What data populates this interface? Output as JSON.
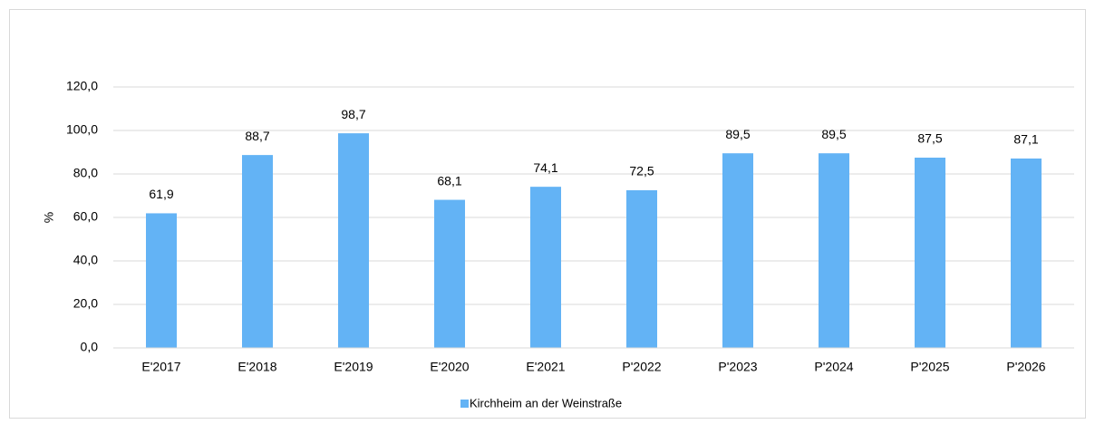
{
  "chart_data": {
    "type": "bar",
    "y_label": "%",
    "categories": [
      "E'2017",
      "E'2018",
      "E'2019",
      "E'2020",
      "E'2021",
      "P'2022",
      "P'2023",
      "P'2024",
      "P'2025",
      "P'2026"
    ],
    "series": [
      {
        "name": "Kirchheim an der Weinstraße",
        "color": "#63b3f5",
        "values": [
          61.9,
          88.7,
          98.7,
          68.1,
          74.1,
          72.5,
          89.5,
          89.5,
          87.5,
          87.1
        ],
        "value_labels": [
          "61,9",
          "88,7",
          "98,7",
          "68,1",
          "74,1",
          "72,5",
          "89,5",
          "89,5",
          "87,5",
          "87,1"
        ]
      }
    ],
    "ylim": [
      0,
      120
    ],
    "yticks": [
      {
        "value": 0,
        "label": "0,0"
      },
      {
        "value": 20,
        "label": "20,0"
      },
      {
        "value": 40,
        "label": "40,0"
      },
      {
        "value": 60,
        "label": "60,0"
      },
      {
        "value": 80,
        "label": "80,0"
      },
      {
        "value": 100,
        "label": "100,0"
      },
      {
        "value": 120,
        "label": "120,0"
      }
    ],
    "grid": true,
    "legend": "bottom"
  }
}
